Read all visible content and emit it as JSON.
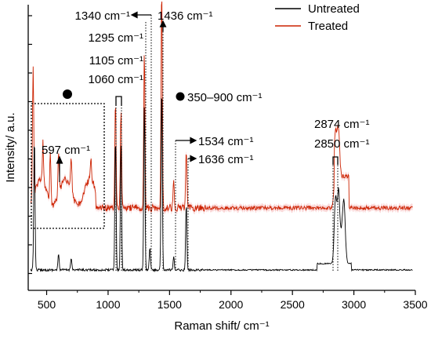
{
  "chart_data": {
    "type": "line",
    "xlabel": "Raman shift/ cm⁻¹",
    "ylabel": "Intensity/ a.u.",
    "xlim": [
      350,
      3500
    ],
    "xticks": [
      500,
      1000,
      1500,
      2000,
      2500,
      3000,
      3500
    ],
    "y_tick_labels_shown": false,
    "legend": {
      "position": "top-right"
    },
    "series": [
      {
        "name": "Untreated",
        "color": "#000000",
        "peaks": [
          {
            "x": 400,
            "h": 0.42
          },
          {
            "x": 597,
            "h": 0.05
          },
          {
            "x": 700,
            "h": 0.04
          },
          {
            "x": 1060,
            "h": 0.42
          },
          {
            "x": 1105,
            "h": 0.4
          },
          {
            "x": 1295,
            "h": 0.52
          },
          {
            "x": 1340,
            "h": 0.07
          },
          {
            "x": 1436,
            "h": 0.58
          },
          {
            "x": 1534,
            "h": 0.04
          },
          {
            "x": 1636,
            "h": 0.21
          },
          {
            "x": 2850,
            "h": 0.2
          },
          {
            "x": 2874,
            "h": 0.21
          },
          {
            "x": 2920,
            "h": 0.13
          }
        ]
      },
      {
        "name": "Treated",
        "color": "#cc2200",
        "peaks": [
          {
            "x": 390,
            "h": 0.41
          },
          {
            "x": 470,
            "h": 0.12
          },
          {
            "x": 530,
            "h": 0.15
          },
          {
            "x": 597,
            "h": 0.13
          },
          {
            "x": 700,
            "h": 0.11
          },
          {
            "x": 860,
            "h": 0.06
          },
          {
            "x": 1060,
            "h": 0.34
          },
          {
            "x": 1105,
            "h": 0.3
          },
          {
            "x": 1295,
            "h": 0.5
          },
          {
            "x": 1436,
            "h": 0.7
          },
          {
            "x": 1534,
            "h": 0.09
          },
          {
            "x": 1636,
            "h": 0.19
          },
          {
            "x": 2850,
            "h": 0.14
          },
          {
            "x": 2874,
            "h": 0.15
          }
        ]
      }
    ],
    "annotations": [
      {
        "id": "a1340",
        "text": "1340 cm⁻¹"
      },
      {
        "id": "a1436",
        "text": "1436 cm⁻¹"
      },
      {
        "id": "a1295",
        "text": "1295 cm⁻¹"
      },
      {
        "id": "a1105",
        "text": "1105 cm⁻¹"
      },
      {
        "id": "a1060",
        "text": "1060 cm⁻¹"
      },
      {
        "id": "a350900",
        "text": "350–900 cm⁻¹"
      },
      {
        "id": "a597",
        "text": "597 cm⁻¹"
      },
      {
        "id": "a1534",
        "text": "1534 cm⁻¹"
      },
      {
        "id": "a1636",
        "text": "1636 cm⁻¹"
      },
      {
        "id": "a2874",
        "text": "2874 cm⁻¹"
      },
      {
        "id": "a2850",
        "text": "2850 cm⁻¹"
      }
    ]
  }
}
